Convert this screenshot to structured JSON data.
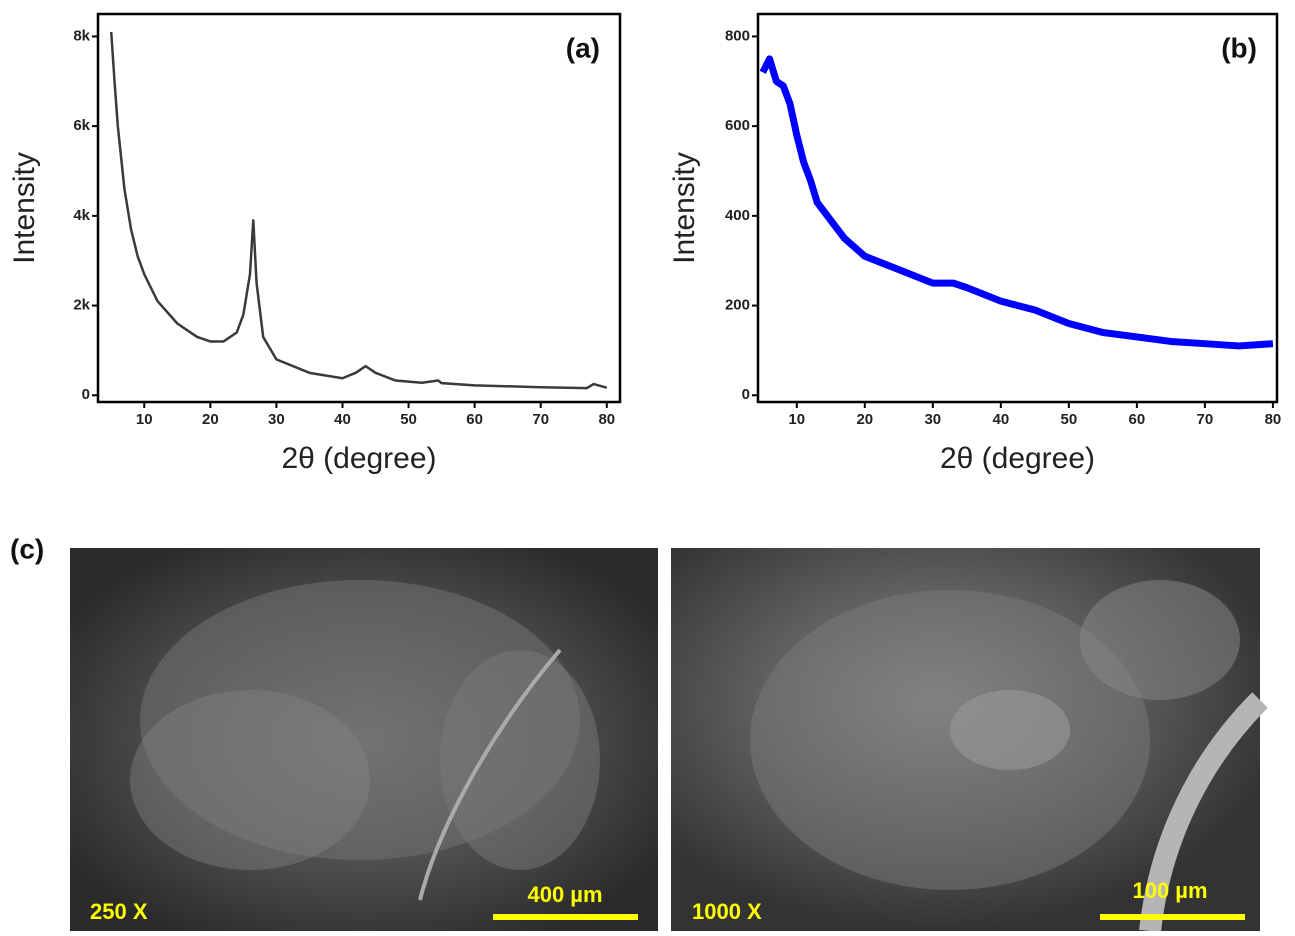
{
  "chart_data": [
    {
      "type": "line",
      "panel_label": "(a)",
      "x_label": "2θ (degree)",
      "y_label": "Intensity",
      "series": [
        {
          "color": "#3a3a3a",
          "x": [
            5,
            5.5,
            6,
            7,
            8,
            9,
            10,
            12,
            15,
            18,
            20,
            22,
            24,
            25,
            26,
            26.5,
            27,
            28,
            30,
            35,
            40,
            42,
            43.5,
            45,
            48,
            52,
            54.5,
            55,
            60,
            70,
            77,
            78,
            80
          ],
          "values": [
            8100,
            7000,
            6000,
            4600,
            3700,
            3100,
            2700,
            2100,
            1600,
            1300,
            1200,
            1200,
            1400,
            1800,
            2700,
            3900,
            2500,
            1300,
            800,
            500,
            380,
            500,
            650,
            500,
            330,
            280,
            330,
            270,
            220,
            180,
            160,
            250,
            170
          ]
        }
      ],
      "xlim": [
        3,
        82
      ],
      "ylim": [
        -150,
        8500
      ],
      "xticks": [
        10,
        20,
        30,
        40,
        50,
        60,
        70,
        80
      ],
      "yticks": [
        0,
        {
          "value": 2000,
          "label": "2k"
        },
        {
          "value": 4000,
          "label": "4k"
        },
        {
          "value": 6000,
          "label": "6k"
        },
        {
          "value": 8000,
          "label": "8k"
        }
      ]
    },
    {
      "type": "line",
      "panel_label": "(b)",
      "x_label": "2θ (degree)",
      "y_label": "Intensity",
      "series": [
        {
          "color": "#0000ff",
          "x": [
            5,
            6,
            7,
            8,
            9,
            10,
            11,
            12,
            13,
            15,
            17,
            20,
            25,
            30,
            33,
            35,
            40,
            45,
            50,
            55,
            60,
            65,
            70,
            75,
            80
          ],
          "values": [
            720,
            750,
            700,
            690,
            650,
            580,
            520,
            480,
            430,
            390,
            350,
            310,
            280,
            250,
            250,
            240,
            210,
            190,
            160,
            140,
            130,
            120,
            115,
            110,
            115
          ]
        }
      ],
      "xlim": [
        4.3,
        80.6
      ],
      "ylim": [
        -15,
        850
      ],
      "xticks": [
        10,
        20,
        30,
        40,
        50,
        60,
        70,
        80
      ],
      "yticks": [
        0,
        200,
        400,
        600,
        800
      ]
    }
  ],
  "images": {
    "panel_label": "(c)",
    "panels": [
      {
        "magnification": "250 X",
        "scale_bar": "400 µm"
      },
      {
        "magnification": "1000 X",
        "scale_bar": "100 µm"
      }
    ]
  }
}
